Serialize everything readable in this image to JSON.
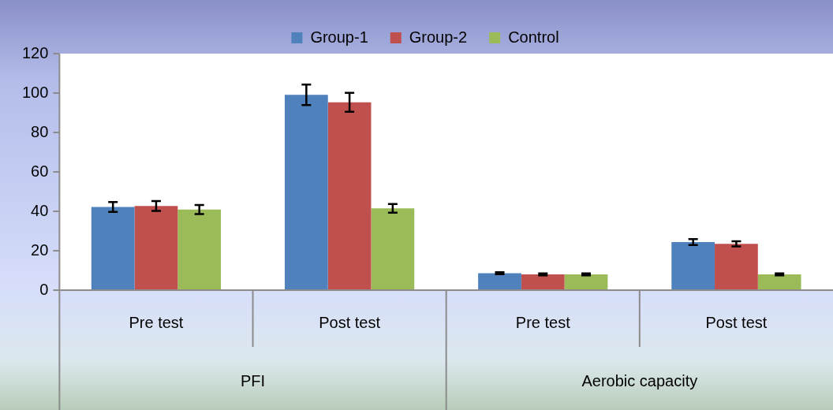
{
  "chart_data": {
    "type": "bar",
    "categories": [
      "Pre test",
      "Post test",
      "Pre test",
      "Post test"
    ],
    "annotations": [
      "PFI",
      "Aerobic capacity"
    ],
    "series": [
      {
        "name": "Group-1",
        "color": "#4f81bd",
        "values": [
          42.2,
          99.1,
          8.6,
          24.4
        ],
        "errors": [
          2.5,
          5.2,
          0.5,
          1.5
        ]
      },
      {
        "name": "Group-2",
        "color": "#c0504d",
        "values": [
          42.7,
          95.3,
          8.0,
          23.5
        ],
        "errors": [
          2.5,
          4.8,
          0.5,
          1.3
        ]
      },
      {
        "name": "Control",
        "color": "#9bbb59",
        "values": [
          40.9,
          41.5,
          8.0,
          8.0
        ],
        "errors": [
          2.3,
          2.2,
          0.5,
          0.5
        ]
      }
    ],
    "ylim": [
      0,
      120
    ],
    "yticks": [
      0,
      20,
      40,
      60,
      80,
      100,
      120
    ],
    "grid": false,
    "legend": "top"
  }
}
